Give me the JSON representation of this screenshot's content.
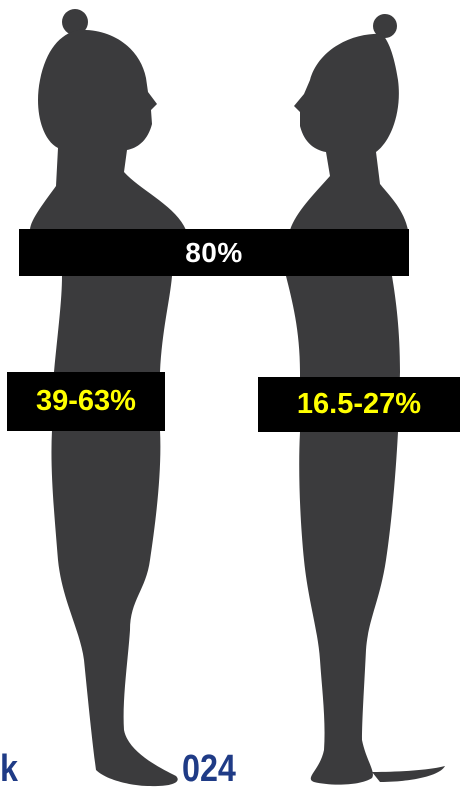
{
  "colors": {
    "silhouette": "#3b3b3d",
    "band_background": "#000000",
    "band_text": "#ffffff",
    "label_background": "#000000",
    "label_text": "#ffff00",
    "watermark": "#1f3b86"
  },
  "band": {
    "text": "80%"
  },
  "left_figure": {
    "label": "39-63%"
  },
  "right_figure": {
    "label": "16.5-27%"
  },
  "watermark": {
    "left_fragment": "k",
    "right_fragment": "024"
  }
}
